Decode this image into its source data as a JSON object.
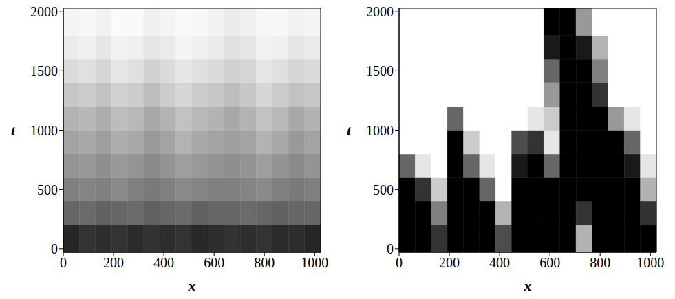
{
  "chart_data": [
    {
      "type": "heatmap",
      "x_label": "x",
      "y_label": "t",
      "xlim": [
        0,
        1024
      ],
      "ylim": [
        -30,
        2030
      ],
      "xticks": [
        0,
        200,
        400,
        600,
        800,
        1000
      ],
      "yticks": [
        0,
        500,
        1000,
        1500,
        2000
      ],
      "cell_x": [
        0,
        64,
        128,
        192,
        256,
        320,
        384,
        448,
        512,
        576,
        640,
        704,
        768,
        832,
        896,
        960,
        1024
      ],
      "cell_y": [
        -30,
        200,
        400,
        600,
        800,
        1000,
        1200,
        1400,
        1600,
        1800,
        2030
      ],
      "cells": [
        [
          0.85,
          0.8,
          0.82,
          0.8,
          0.83,
          0.8,
          0.82,
          0.8,
          0.84,
          0.82,
          0.8,
          0.82,
          0.8,
          0.83,
          0.82,
          0.85
        ],
        [
          0.6,
          0.58,
          0.62,
          0.6,
          0.58,
          0.62,
          0.6,
          0.58,
          0.62,
          0.6,
          0.6,
          0.58,
          0.6,
          0.62,
          0.6,
          0.6
        ],
        [
          0.5,
          0.48,
          0.5,
          0.46,
          0.5,
          0.52,
          0.5,
          0.46,
          0.48,
          0.5,
          0.5,
          0.48,
          0.46,
          0.5,
          0.52,
          0.5
        ],
        [
          0.42,
          0.4,
          0.44,
          0.4,
          0.42,
          0.46,
          0.42,
          0.38,
          0.4,
          0.42,
          0.44,
          0.42,
          0.38,
          0.42,
          0.46,
          0.42
        ],
        [
          0.36,
          0.34,
          0.38,
          0.32,
          0.34,
          0.4,
          0.36,
          0.3,
          0.34,
          0.36,
          0.38,
          0.36,
          0.3,
          0.34,
          0.4,
          0.36
        ],
        [
          0.3,
          0.28,
          0.32,
          0.26,
          0.28,
          0.34,
          0.3,
          0.24,
          0.28,
          0.3,
          0.34,
          0.3,
          0.24,
          0.28,
          0.34,
          0.3
        ],
        [
          0.22,
          0.2,
          0.24,
          0.18,
          0.2,
          0.26,
          0.2,
          0.16,
          0.2,
          0.22,
          0.26,
          0.22,
          0.16,
          0.2,
          0.24,
          0.22
        ],
        [
          0.14,
          0.12,
          0.16,
          0.1,
          0.12,
          0.18,
          0.14,
          0.1,
          0.12,
          0.14,
          0.18,
          0.16,
          0.1,
          0.12,
          0.16,
          0.14
        ],
        [
          0.08,
          0.06,
          0.1,
          0.05,
          0.06,
          0.1,
          0.08,
          0.04,
          0.06,
          0.08,
          0.12,
          0.1,
          0.05,
          0.06,
          0.1,
          0.08
        ],
        [
          0.04,
          0.03,
          0.05,
          0.02,
          0.02,
          0.06,
          0.04,
          0.02,
          0.03,
          0.05,
          0.08,
          0.06,
          0.03,
          0.03,
          0.05,
          0.04
        ]
      ]
    },
    {
      "type": "heatmap",
      "x_label": "x",
      "y_label": "t",
      "xlim": [
        0,
        1024
      ],
      "ylim": [
        -30,
        2030
      ],
      "xticks": [
        0,
        200,
        400,
        600,
        800,
        1000
      ],
      "yticks": [
        0,
        500,
        1000,
        1500,
        2000
      ],
      "cell_x": [
        0,
        64,
        128,
        192,
        256,
        320,
        384,
        448,
        512,
        576,
        640,
        704,
        768,
        832,
        896,
        960,
        1024
      ],
      "cell_y": [
        -30,
        200,
        400,
        600,
        800,
        1000,
        1200,
        1400,
        1600,
        1800,
        2030
      ],
      "cells": [
        [
          1,
          1,
          0.8,
          1,
          1,
          1,
          0.7,
          1,
          1,
          1,
          1,
          0.3,
          1,
          1,
          1,
          1
        ],
        [
          1,
          1,
          0.5,
          1,
          1,
          1,
          0.3,
          1,
          1,
          1,
          1,
          0.8,
          1,
          1,
          1,
          0.8
        ],
        [
          1,
          0.8,
          0.2,
          1,
          1,
          0.6,
          0,
          1,
          1,
          1,
          1,
          1,
          1,
          1,
          1,
          0.3
        ],
        [
          0.6,
          0.1,
          0,
          1,
          0.6,
          0.1,
          0,
          0.9,
          1,
          0.6,
          1,
          1,
          1,
          1,
          0.9,
          0.1
        ],
        [
          0,
          0,
          0,
          1,
          0.2,
          0,
          0,
          0.7,
          0.8,
          0.1,
          1,
          1,
          1,
          1,
          0.6,
          0
        ],
        [
          0,
          0,
          0,
          0.6,
          0,
          0,
          0,
          0,
          0.1,
          0.2,
          1,
          1,
          1,
          0.4,
          0.1,
          0
        ],
        [
          0,
          0,
          0,
          0,
          0,
          0,
          0,
          0,
          0,
          0.4,
          1,
          1,
          0.8,
          0,
          0,
          0
        ],
        [
          0,
          0,
          0,
          0,
          0,
          0,
          0,
          0,
          0,
          0.6,
          1,
          1,
          0.5,
          0,
          0,
          0
        ],
        [
          0,
          0,
          0,
          0,
          0,
          0,
          0,
          0,
          0,
          0.9,
          1,
          0.9,
          0.3,
          0,
          0,
          0
        ],
        [
          0,
          0,
          0,
          0,
          0,
          0,
          0,
          0,
          0,
          1,
          1,
          0.4,
          0,
          0,
          0,
          0
        ]
      ]
    }
  ]
}
